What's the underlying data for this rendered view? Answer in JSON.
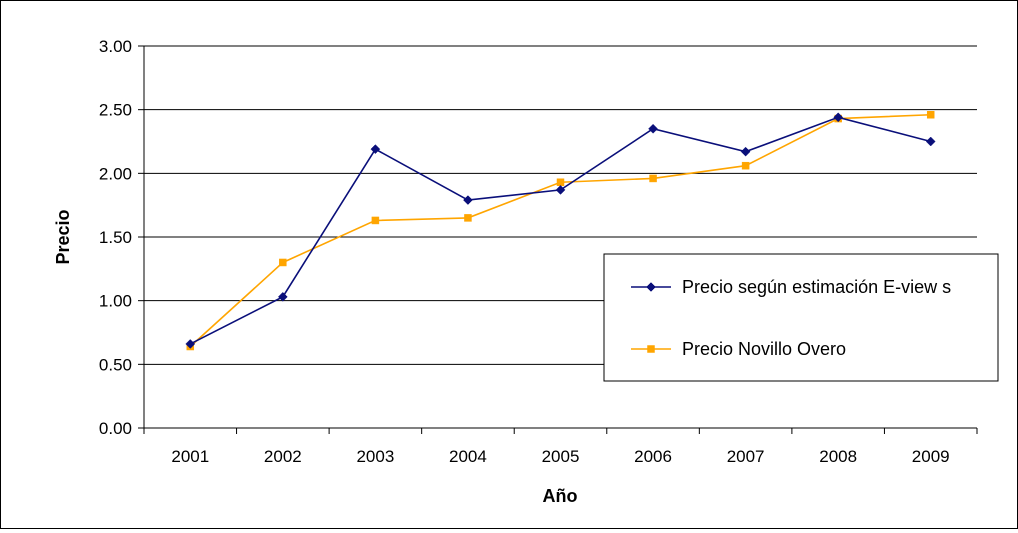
{
  "chart_data": {
    "type": "line",
    "title": "",
    "xlabel": "Año",
    "ylabel": "Precio",
    "ylim": [
      0,
      3
    ],
    "yticks": [
      "0.00",
      "0.50",
      "1.00",
      "1.50",
      "2.00",
      "2.50",
      "3.00"
    ],
    "categories": [
      "2001",
      "2002",
      "2003",
      "2004",
      "2005",
      "2006",
      "2007",
      "2008",
      "2009"
    ],
    "grid": "horizontal",
    "legend_position": "right",
    "series": [
      {
        "name": "Precio según estimación E-view s",
        "color": "#0A0F7A",
        "marker": "diamond",
        "values": [
          0.66,
          1.03,
          2.19,
          1.79,
          1.87,
          2.35,
          2.17,
          2.44,
          2.25
        ]
      },
      {
        "name": "Precio Novillo Overo",
        "color": "#FFA500",
        "marker": "square",
        "values": [
          0.64,
          1.3,
          1.63,
          1.65,
          1.93,
          1.96,
          2.06,
          2.43,
          2.46
        ]
      }
    ]
  }
}
